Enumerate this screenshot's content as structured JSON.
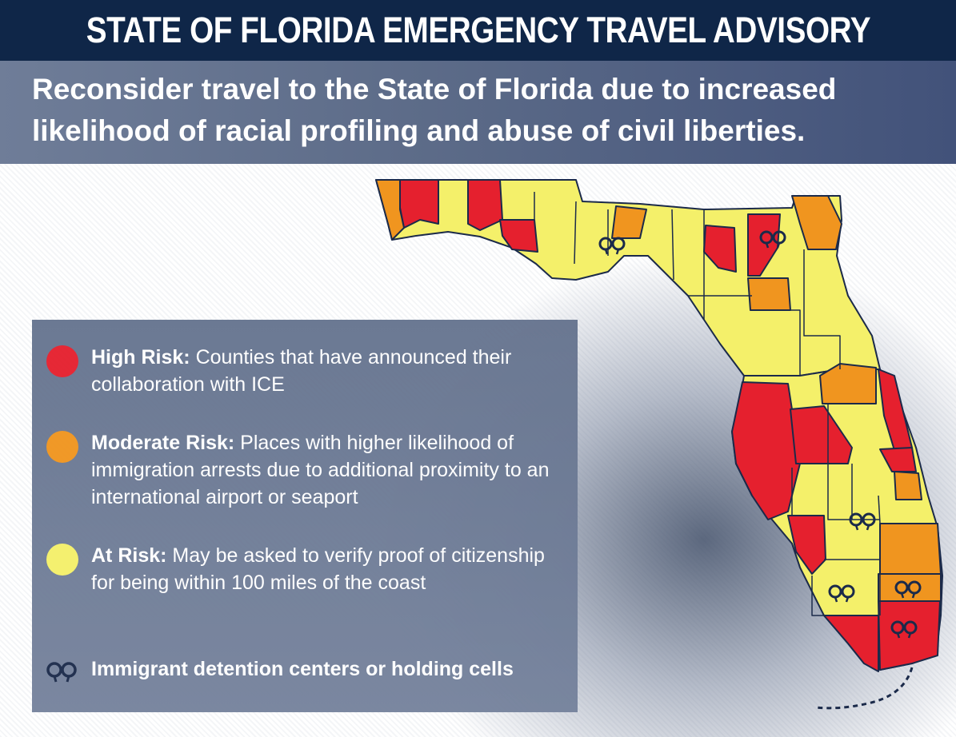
{
  "header": {
    "title": "STATE OF FLORIDA EMERGENCY TRAVEL ADVISORY",
    "subtitle": "Reconsider travel to the State of Florida due to increased likelihood of racial profiling and abuse of civil liberties."
  },
  "colors": {
    "high": "#e5202e",
    "moderate": "#f0951f",
    "at_risk": "#f4f06a",
    "title_bg": "#0f2648",
    "border": "#1b2a4a"
  },
  "legend": {
    "items": [
      {
        "level": "high",
        "label": "High Risk:",
        "text": "Counties that have announced their collaboration with ICE"
      },
      {
        "level": "moderate",
        "label": "Moderate Risk:",
        "text": "Places with higher likelihood of immigration arrests due to additional proximity to an international airport or seaport"
      },
      {
        "level": "at_risk",
        "label": "At Risk:",
        "text": "May be asked to verify proof of citizenship for being within 100 miles of the coast"
      }
    ],
    "detention": {
      "icon": "handcuffs-icon",
      "text": "Immigrant detention centers or holding cells"
    }
  }
}
